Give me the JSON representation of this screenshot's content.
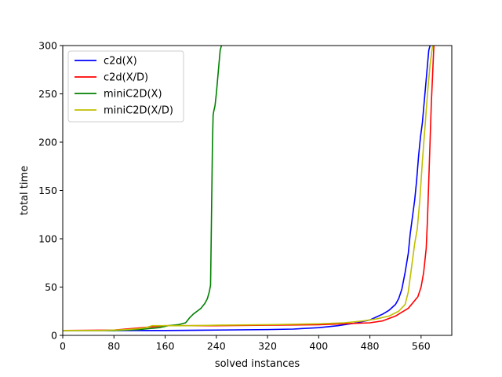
{
  "chart_data": {
    "type": "line",
    "title": "",
    "xlabel": "solved instances",
    "ylabel": "total time",
    "xlim": [
      0,
      608
    ],
    "ylim": [
      0,
      300
    ],
    "xticks": [
      0,
      80,
      160,
      240,
      320,
      400,
      480,
      560
    ],
    "yticks": [
      0,
      50,
      100,
      150,
      200,
      250,
      300
    ],
    "grid": false,
    "legend_position": "top-left",
    "series": [
      {
        "name": "c2d(X)",
        "color": "#0000ff",
        "x": [
          0,
          80,
          160,
          240,
          320,
          360,
          400,
          430,
          460,
          480,
          490,
          500,
          510,
          520,
          525,
          530,
          535,
          540,
          543,
          546,
          550,
          553,
          556,
          559,
          562,
          564,
          566,
          568,
          570,
          572,
          574
        ],
        "y": [
          5,
          5,
          5,
          5.5,
          6,
          6.5,
          8,
          10,
          13,
          16,
          19,
          22,
          26,
          32,
          38,
          48,
          65,
          85,
          105,
          120,
          140,
          160,
          185,
          205,
          220,
          235,
          250,
          265,
          280,
          295,
          300
        ]
      },
      {
        "name": "c2d(X/D)",
        "color": "#ff0000",
        "x": [
          0,
          80,
          160,
          240,
          320,
          400,
          480,
          500,
          520,
          540,
          555,
          560,
          564,
          568,
          570,
          572,
          574,
          576,
          578,
          580
        ],
        "y": [
          5,
          5.5,
          10,
          10,
          10.5,
          11,
          13,
          15,
          20,
          28,
          40,
          50,
          65,
          90,
          120,
          160,
          200,
          240,
          270,
          300
        ]
      },
      {
        "name": "miniC2D(X)",
        "color": "#008000",
        "x": [
          0,
          80,
          120,
          150,
          165,
          180,
          192,
          198,
          204,
          210,
          216,
          222,
          226,
          229,
          231,
          232,
          233,
          234,
          235,
          236,
          238,
          240,
          242,
          244,
          246,
          248
        ],
        "y": [
          5,
          5,
          6,
          8,
          10,
          11,
          13,
          18,
          22,
          25,
          28,
          33,
          38,
          45,
          52,
          100,
          150,
          200,
          228,
          232,
          238,
          250,
          265,
          280,
          295,
          300
        ]
      },
      {
        "name": "miniC2D(X/D)",
        "color": "#bfbf00",
        "x": [
          0,
          60,
          80,
          100,
          120,
          130,
          140,
          160,
          200,
          240,
          320,
          400,
          440,
          470,
          490,
          510,
          525,
          535,
          540,
          545,
          550,
          554,
          558,
          562,
          566,
          570,
          574,
          578
        ],
        "y": [
          5,
          5,
          5.5,
          6,
          7,
          8,
          10,
          10,
          10,
          10.5,
          11,
          12,
          13,
          15,
          17,
          20,
          25,
          32,
          45,
          70,
          95,
          110,
          140,
          180,
          215,
          250,
          280,
          300
        ]
      }
    ]
  }
}
